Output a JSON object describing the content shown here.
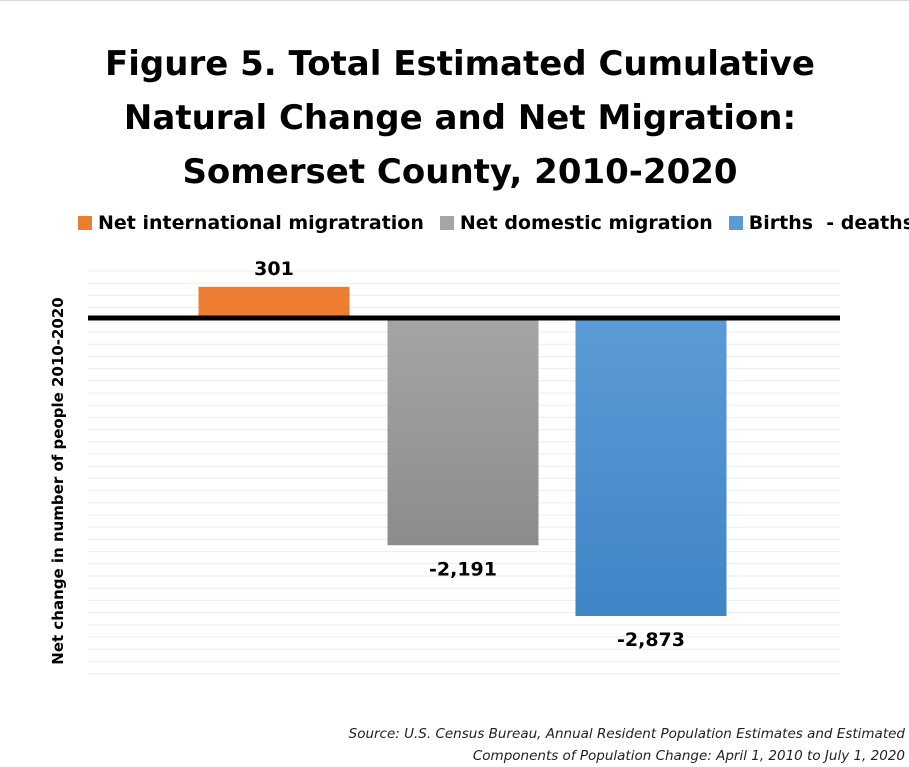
{
  "chart_data": {
    "type": "bar",
    "title_lines": [
      "Figure 5. Total Estimated Cumulative",
      "Natural Change and Net Migration:",
      "Somerset County, 2010-2020"
    ],
    "ylabel": "Net change in number of people 2010-2020",
    "xlabel": "",
    "categories": [
      "Net international migratration",
      "Net domestic migration",
      "Births  - deaths"
    ],
    "values": [
      301,
      -2191,
      -2873
    ],
    "data_labels": [
      "301",
      "-2,191",
      "-2,873"
    ],
    "colors": [
      "#ed7d31",
      "#a5a5a5",
      "#5b9bd5"
    ],
    "gradient_bottom_colors": [
      "#ed7d31",
      "#8c8c8c",
      "#3f85c6"
    ],
    "ylim": [
      -3500,
      500
    ],
    "grid": true,
    "legend": "top",
    "zero_line": true
  },
  "source": {
    "line1": "Source: U.S. Census Bureau, Annual Resident Population Estimates and Estimated",
    "line2": "Components of Population Change: April 1, 2010 to July 1, 2020"
  }
}
